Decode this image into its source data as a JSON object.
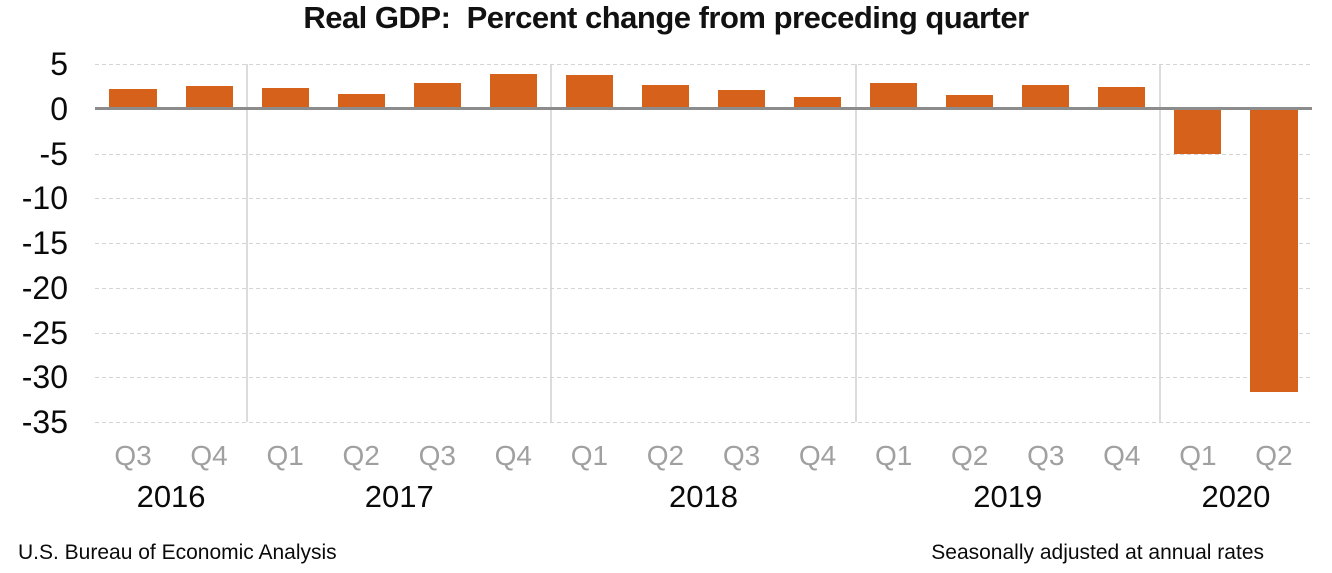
{
  "title": "Real GDP:  Percent change from preceding quarter",
  "footer": {
    "source": "U.S. Bureau of Economic Analysis",
    "note": "Seasonally adjusted at annual rates"
  },
  "chart_data": {
    "type": "bar",
    "title": "Real GDP:  Percent change from preceding quarter",
    "categories": [
      "Q3",
      "Q4",
      "Q1",
      "Q2",
      "Q3",
      "Q4",
      "Q1",
      "Q2",
      "Q3",
      "Q4",
      "Q1",
      "Q2",
      "Q3",
      "Q4",
      "Q1",
      "Q2"
    ],
    "year_groups": [
      {
        "label": "2016",
        "span": 2
      },
      {
        "label": "2017",
        "span": 4
      },
      {
        "label": "2018",
        "span": 4
      },
      {
        "label": "2019",
        "span": 4
      },
      {
        "label": "2020",
        "span": 2
      }
    ],
    "values": [
      2.2,
      2.5,
      2.3,
      1.7,
      2.9,
      3.9,
      3.8,
      2.7,
      2.1,
      1.3,
      2.9,
      1.5,
      2.6,
      2.4,
      -5.0,
      -31.7
    ],
    "ylabel": "",
    "xlabel": "",
    "ylim": [
      -35,
      5
    ],
    "yticks": [
      5,
      0,
      -5,
      -10,
      -15,
      -20,
      -25,
      -30,
      -35
    ],
    "grid": {
      "horizontal": "dashed",
      "year_separators": true
    },
    "legend": "none",
    "source": "U.S. Bureau of Economic Analysis",
    "note": "Seasonally adjusted at annual rates",
    "colors": {
      "bar": "#D5611B",
      "zero_line": "#8C8C8C",
      "gridline": "#D4D4D4",
      "year_separator": "#DCDCDC",
      "quarter_label": "#A0A0A0",
      "text": "#0A0A0A"
    }
  }
}
